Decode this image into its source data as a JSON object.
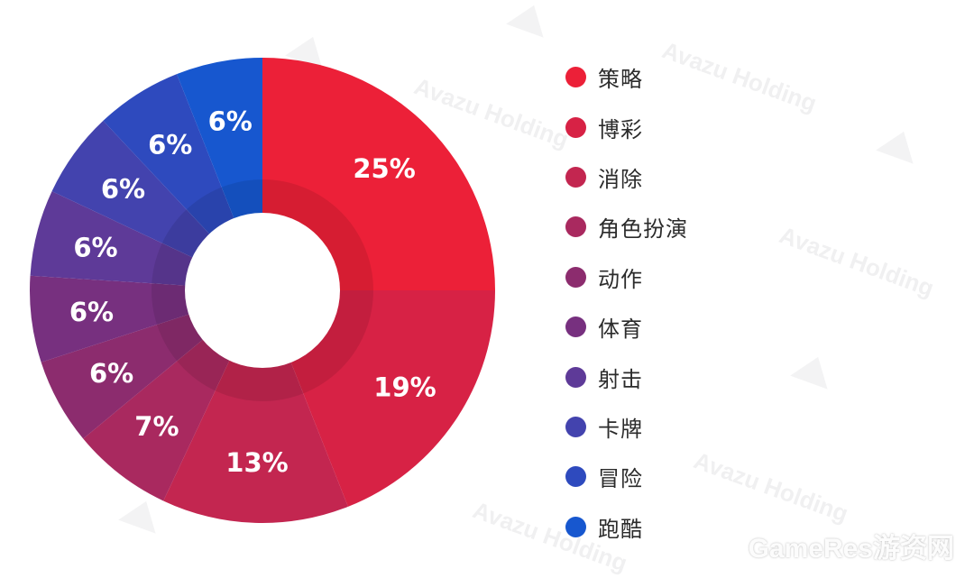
{
  "chart_data": {
    "type": "pie",
    "variant": "donut",
    "categories": [
      "策略",
      "博彩",
      "消除",
      "角色扮演",
      "动作",
      "体育",
      "射击",
      "卡牌",
      "冒险",
      "跑酷"
    ],
    "values": [
      25,
      19,
      13,
      7,
      6,
      6,
      6,
      6,
      6,
      6
    ],
    "labels": [
      "25%",
      "19%",
      "13%",
      "7%",
      "6%",
      "6%",
      "6%",
      "6%",
      "6%",
      "6%"
    ],
    "colors": [
      "#EC2038",
      "#D72245",
      "#C32650",
      "#A9295F",
      "#8C2C6E",
      "#77307F",
      "#5E3A98",
      "#4343AE",
      "#2E4ABE",
      "#1757CF"
    ],
    "legend_position": "right"
  },
  "watermark": {
    "text": "Avazu Holding",
    "footer": "GameRes游资网"
  }
}
